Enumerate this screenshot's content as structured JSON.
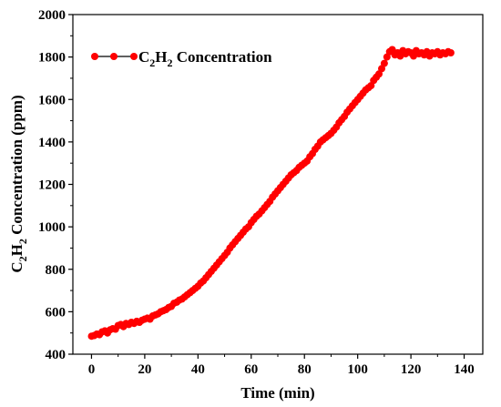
{
  "chart_data": {
    "type": "scatter",
    "xlabel": "Time (min)",
    "ylabel": {
      "parts": [
        "C",
        "2",
        "H",
        "2",
        " Concentration (ppm)"
      ]
    },
    "xlim": [
      -7,
      147
    ],
    "ylim": [
      400,
      2000
    ],
    "x_ticks": [
      0,
      20,
      40,
      60,
      80,
      100,
      120,
      140
    ],
    "y_ticks": [
      400,
      600,
      800,
      1000,
      1200,
      1400,
      1600,
      1800,
      2000
    ],
    "legend": {
      "placement": "top-left",
      "parts": [
        "C",
        "2",
        "H",
        "2",
        " Concentration"
      ]
    },
    "series": [
      {
        "name": "C2H2 Concentration",
        "color": "#ff0000",
        "line_color": "#000000",
        "x": [
          0,
          1,
          2,
          3,
          4,
          5,
          6,
          7,
          8,
          9,
          10,
          11,
          12,
          13,
          14,
          15,
          16,
          17,
          18,
          19,
          20,
          21,
          22,
          23,
          24,
          25,
          26,
          27,
          28,
          29,
          30,
          31,
          32,
          33,
          34,
          35,
          36,
          37,
          38,
          39,
          40,
          41,
          42,
          43,
          44,
          45,
          46,
          47,
          48,
          49,
          50,
          51,
          52,
          53,
          54,
          55,
          56,
          57,
          58,
          59,
          60,
          61,
          62,
          63,
          64,
          65,
          66,
          67,
          68,
          69,
          70,
          71,
          72,
          73,
          74,
          75,
          76,
          77,
          78,
          79,
          80,
          81,
          82,
          83,
          84,
          85,
          86,
          87,
          88,
          89,
          90,
          91,
          92,
          93,
          94,
          95,
          96,
          97,
          98,
          99,
          100,
          101,
          102,
          103,
          104,
          105,
          106,
          107,
          108,
          109,
          110,
          111,
          112,
          113,
          114,
          115,
          116,
          117,
          118,
          119,
          120,
          121,
          122,
          123,
          124,
          125,
          126,
          127,
          128,
          129,
          130,
          131,
          132,
          133,
          134,
          135
        ],
        "y": [
          485,
          488,
          495,
          492,
          505,
          510,
          500,
          515,
          520,
          518,
          535,
          540,
          530,
          545,
          540,
          550,
          545,
          555,
          550,
          560,
          565,
          570,
          565,
          580,
          585,
          590,
          600,
          605,
          610,
          620,
          625,
          640,
          645,
          655,
          660,
          670,
          680,
          690,
          700,
          710,
          720,
          735,
          745,
          760,
          775,
          790,
          805,
          820,
          835,
          850,
          865,
          880,
          900,
          915,
          930,
          945,
          960,
          975,
          990,
          1000,
          1020,
          1035,
          1050,
          1060,
          1075,
          1090,
          1105,
          1120,
          1140,
          1155,
          1170,
          1185,
          1200,
          1215,
          1230,
          1245,
          1255,
          1265,
          1280,
          1290,
          1300,
          1310,
          1330,
          1345,
          1365,
          1380,
          1400,
          1410,
          1420,
          1430,
          1440,
          1455,
          1470,
          1490,
          1505,
          1520,
          1540,
          1555,
          1570,
          1585,
          1600,
          1615,
          1630,
          1645,
          1655,
          1665,
          1690,
          1705,
          1720,
          1745,
          1770,
          1800,
          1825,
          1835,
          1810,
          1820,
          1805,
          1830,
          1815,
          1825,
          1820,
          1805,
          1830,
          1815,
          1820,
          1810,
          1825,
          1805,
          1820,
          1815,
          1825,
          1810,
          1820,
          1815,
          1825,
          1820
        ]
      }
    ]
  }
}
